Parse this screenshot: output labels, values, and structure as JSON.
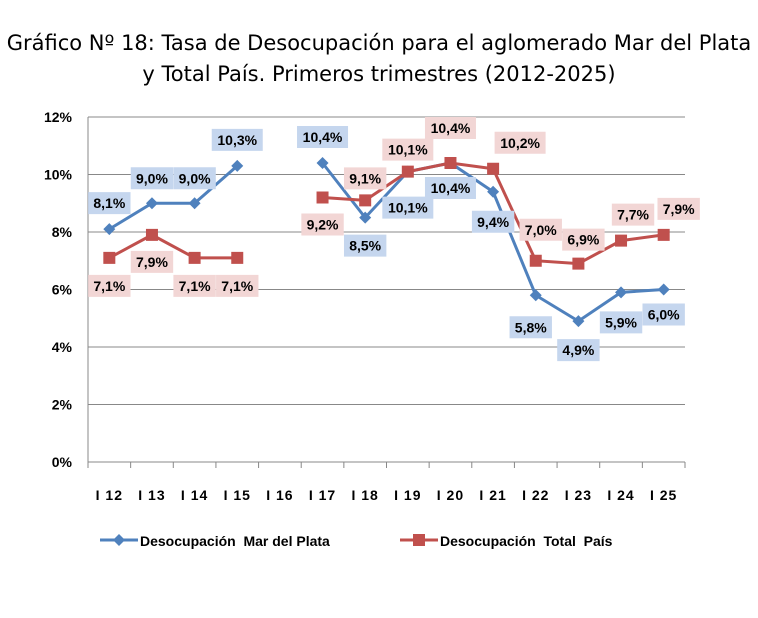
{
  "chart_data": {
    "type": "line",
    "title": "Gráfico Nº 18: Tasa de Desocupación para el aglomerado Mar del Plata y Total País. Primeros trimestres (2012-2025)",
    "categories": [
      "I 12",
      "I 13",
      "I 14",
      "I 15",
      "I 16",
      "I 17",
      "I 18",
      "I 19",
      "I 20",
      "I 21",
      "I 22",
      "I 23",
      "I 24",
      "I 25"
    ],
    "ylim": [
      0,
      12
    ],
    "yticks": [
      "0%",
      "2%",
      "4%",
      "6%",
      "8%",
      "10%",
      "12%"
    ],
    "grid": true,
    "legend": "bottom",
    "series": [
      {
        "name": "Desocupación  Mar del Plata",
        "color": "#4f81bd",
        "marker": "diamond",
        "label_bg": "#c5d6ee",
        "values": [
          8.1,
          9.0,
          9.0,
          10.3,
          null,
          10.4,
          8.5,
          10.1,
          10.4,
          9.4,
          5.8,
          4.9,
          5.9,
          6.0
        ],
        "labels": [
          "8,1%",
          "9,0%",
          "9,0%",
          "10,3%",
          null,
          "10,4%",
          "8,5%",
          "10,1%",
          "10,4%",
          "9,4%",
          "5,8%",
          "4,9%",
          "5,9%",
          "6,0%"
        ]
      },
      {
        "name": "Desocupación  Total  País",
        "color": "#c0504d",
        "marker": "square",
        "label_bg": "#f2d6d5",
        "values": [
          7.1,
          7.9,
          7.1,
          7.1,
          null,
          9.2,
          9.1,
          10.1,
          10.4,
          10.2,
          7.0,
          6.9,
          7.7,
          7.9
        ],
        "labels": [
          "7,1%",
          "7,9%",
          "7,1%",
          "7,1%",
          null,
          "9,2%",
          "9,1%",
          "10,1%",
          "10,4%",
          "10,2%",
          "7,0%",
          "6,9%",
          "7,7%",
          "7,9%"
        ]
      }
    ]
  }
}
